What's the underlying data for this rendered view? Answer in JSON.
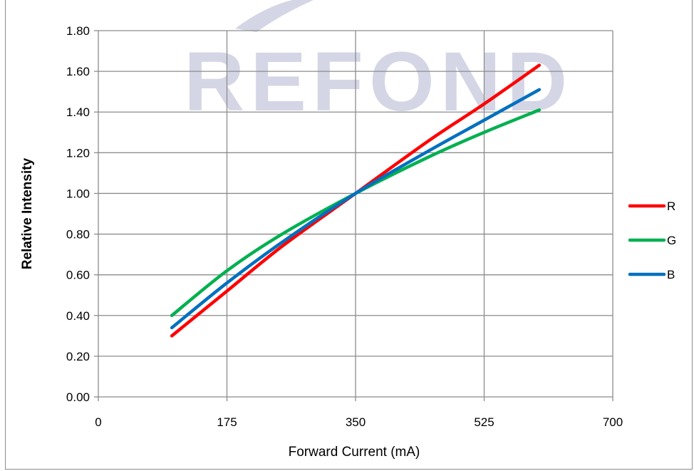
{
  "chart_data": {
    "type": "line",
    "title": "",
    "xlabel": "Forward Current (mA)",
    "ylabel": "Relative Intensity",
    "xlim": [
      0,
      700
    ],
    "ylim": [
      0,
      1.8
    ],
    "x_ticks": [
      "0",
      "175",
      "350",
      "525",
      "700"
    ],
    "y_ticks": [
      "0.00",
      "0.20",
      "0.40",
      "0.60",
      "0.80",
      "1.00",
      "1.20",
      "1.40",
      "1.60",
      "1.80"
    ],
    "grid": true,
    "legend_position": "right",
    "watermark": "REFOND",
    "series": [
      {
        "name": "R",
        "color": "#ff0000",
        "x": [
          100,
          175,
          250,
          350,
          450,
          525,
          600
        ],
        "y": [
          0.3,
          0.52,
          0.74,
          1.0,
          1.26,
          1.44,
          1.63
        ]
      },
      {
        "name": "G",
        "color": "#00b050",
        "x": [
          100,
          175,
          250,
          350,
          450,
          525,
          600
        ],
        "y": [
          0.4,
          0.62,
          0.8,
          1.0,
          1.18,
          1.3,
          1.41
        ]
      },
      {
        "name": "B",
        "color": "#0070c0",
        "x": [
          100,
          175,
          250,
          350,
          450,
          525,
          600
        ],
        "y": [
          0.34,
          0.56,
          0.76,
          1.0,
          1.21,
          1.36,
          1.51
        ]
      }
    ]
  }
}
